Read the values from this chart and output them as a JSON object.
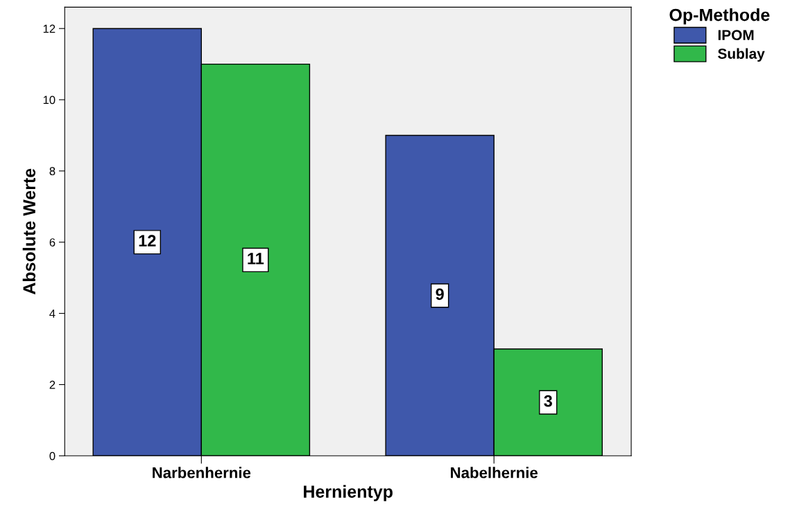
{
  "chart_data": {
    "type": "bar",
    "xlabel": "Hernientyp",
    "ylabel": "Absolute Werte",
    "legend_title": "Op-Methode",
    "categories": [
      "Narbenhernie",
      "Nabelhernie"
    ],
    "series": [
      {
        "name": "IPOM",
        "color": "#3f58ab",
        "values": [
          12,
          9
        ]
      },
      {
        "name": "Sublay",
        "color": "#31b84a",
        "values": [
          11,
          3
        ]
      }
    ],
    "ylim": [
      0,
      12.6
    ],
    "yticks": [
      0,
      2,
      4,
      6,
      8,
      10,
      12
    ],
    "grid": false,
    "legend": "top right",
    "data_labels": true
  }
}
